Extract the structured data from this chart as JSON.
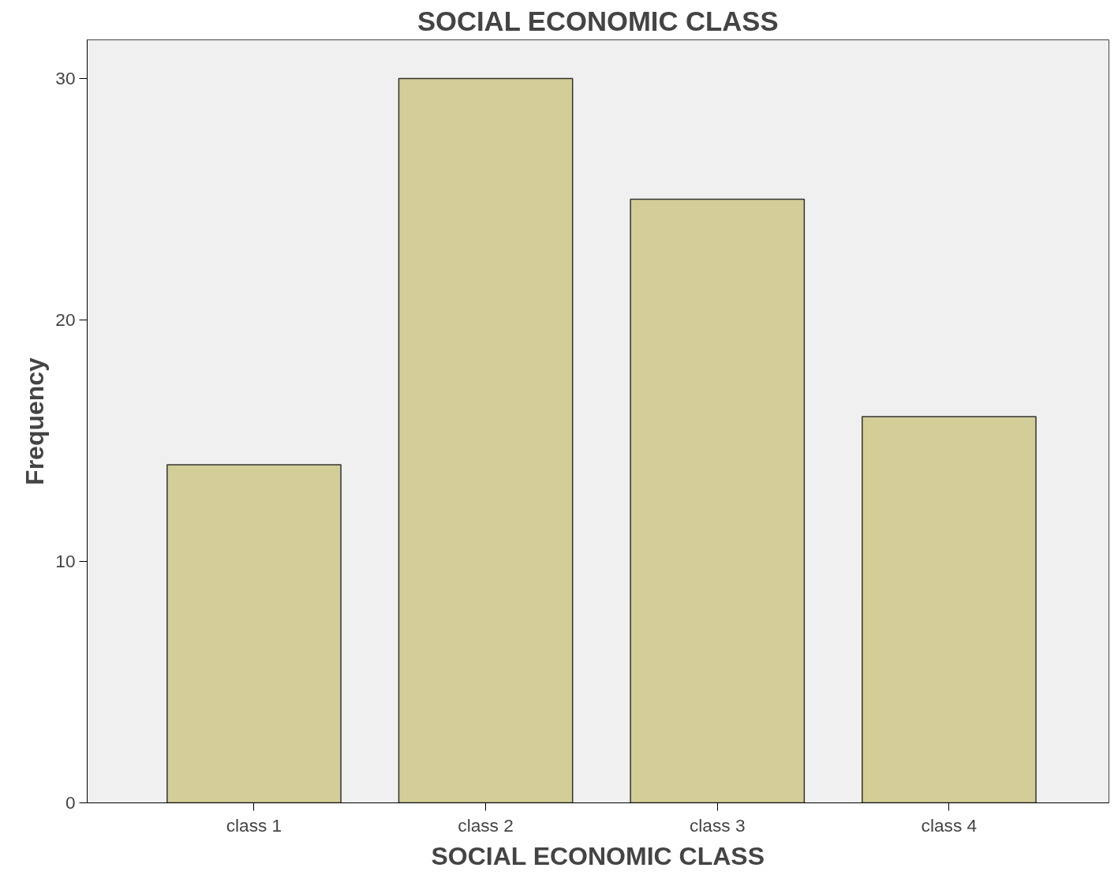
{
  "chart_data": {
    "type": "bar",
    "title": "SOCIAL ECONOMIC CLASS",
    "xlabel": "SOCIAL ECONOMIC CLASS",
    "ylabel": "Frequency",
    "categories": [
      "class 1",
      "class 2",
      "class 3",
      "class 4"
    ],
    "values": [
      14,
      30,
      25,
      16
    ],
    "color": "#d3ce97",
    "ylim": [
      0,
      31.6
    ],
    "yticks": [
      0,
      10,
      20,
      30
    ],
    "grid": false
  }
}
